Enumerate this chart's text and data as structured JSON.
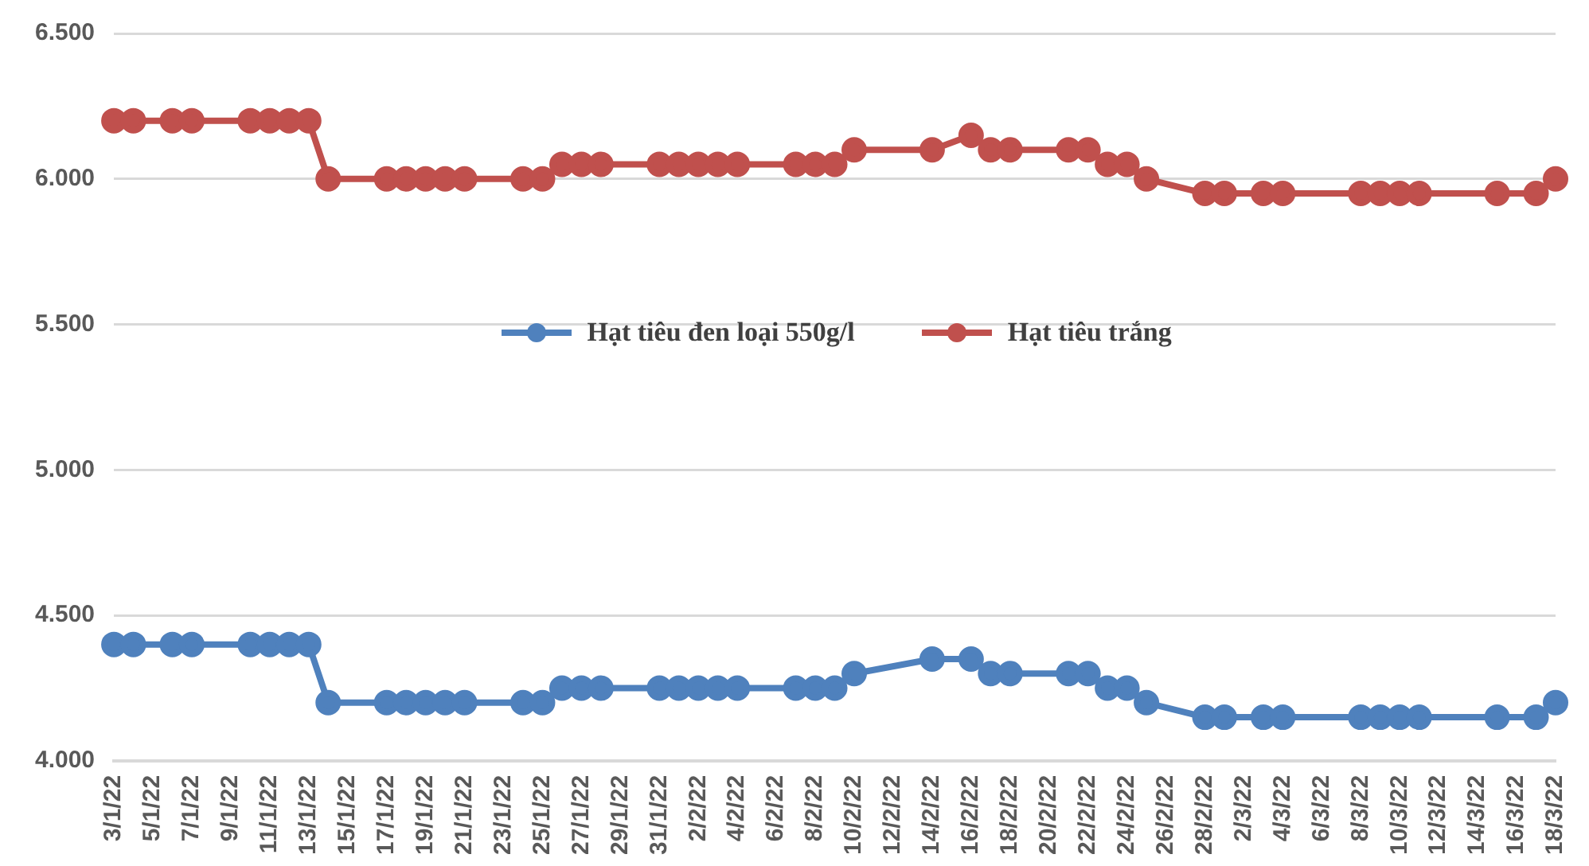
{
  "chart_data": {
    "type": "line",
    "x": [
      "--01-03",
      "--01-04",
      "--01-06",
      "--01-07",
      "--01-10",
      "--01-11",
      "--01-12",
      "--01-13",
      "--01-14",
      "--01-17",
      "--01-18",
      "--01-19",
      "--01-20",
      "--01-21",
      "--01-24",
      "--01-25",
      "--01-26",
      "--01-27",
      "--01-28",
      "--01-31",
      "--02-01",
      "--02-02",
      "--02-03",
      "--02-04",
      "--02-07",
      "--02-08",
      "--02-09",
      "--02-10",
      "--02-14",
      "--02-16",
      "--02-17",
      "--02-18",
      "--02-21",
      "--02-22",
      "--02-23",
      "--02-24",
      "--02-25",
      "--02-28",
      "--03-01",
      "--03-03",
      "--03-04",
      "--03-08",
      "--03-09",
      "--03-10",
      "--03-11",
      "--03-15",
      "--03-17",
      "--03-18"
    ],
    "series": [
      {
        "name": "Hạt tiêu đen loại 550g/l",
        "color": "#4f81bd",
        "values": [
          4400,
          4400,
          4400,
          4400,
          4400,
          4400,
          4400,
          4400,
          4200,
          4200,
          4200,
          4200,
          4200,
          4200,
          4200,
          4200,
          4250,
          4250,
          4250,
          4250,
          4250,
          4250,
          4250,
          4250,
          4250,
          4250,
          4250,
          4300,
          4350,
          4350,
          4300,
          4300,
          4300,
          4300,
          4250,
          4250,
          4200,
          4150,
          4150,
          4150,
          4150,
          4150,
          4150,
          4150,
          4150,
          4150,
          4150,
          4200
        ]
      },
      {
        "name": "Hạt tiêu trắng",
        "color": "#c0504d",
        "values": [
          6200,
          6200,
          6200,
          6200,
          6200,
          6200,
          6200,
          6200,
          6000,
          6000,
          6000,
          6000,
          6000,
          6000,
          6000,
          6000,
          6050,
          6050,
          6050,
          6050,
          6050,
          6050,
          6050,
          6050,
          6050,
          6050,
          6050,
          6100,
          6100,
          6150,
          6100,
          6100,
          6100,
          6100,
          6050,
          6050,
          6000,
          5950,
          5950,
          5950,
          5950,
          5950,
          5950,
          5950,
          5950,
          5950,
          5950,
          6000
        ]
      }
    ],
    "xlim": [
      "--01-03",
      "--03-18"
    ],
    "xticks": [
      {
        "value": "--01-03",
        "label": "3/1/22"
      },
      {
        "value": "--01-05",
        "label": "5/1/22"
      },
      {
        "value": "--01-07",
        "label": "7/1/22"
      },
      {
        "value": "--01-09",
        "label": "9/1/22"
      },
      {
        "value": "--01-11",
        "label": "11/1/22"
      },
      {
        "value": "--01-13",
        "label": "13/1/22"
      },
      {
        "value": "--01-15",
        "label": "15/1/22"
      },
      {
        "value": "--01-17",
        "label": "17/1/22"
      },
      {
        "value": "--01-19",
        "label": "19/1/22"
      },
      {
        "value": "--01-21",
        "label": "21/1/22"
      },
      {
        "value": "--01-23",
        "label": "23/1/22"
      },
      {
        "value": "--01-25",
        "label": "25/1/22"
      },
      {
        "value": "--01-27",
        "label": "27/1/22"
      },
      {
        "value": "--01-29",
        "label": "29/1/22"
      },
      {
        "value": "--01-31",
        "label": "31/1/22"
      },
      {
        "value": "--02-02",
        "label": "2/2/22"
      },
      {
        "value": "--02-04",
        "label": "4/2/22"
      },
      {
        "value": "--02-06",
        "label": "6/2/22"
      },
      {
        "value": "--02-08",
        "label": "8/2/22"
      },
      {
        "value": "--02-10",
        "label": "10/2/22"
      },
      {
        "value": "--02-12",
        "label": "12/2/22"
      },
      {
        "value": "--02-14",
        "label": "14/2/22"
      },
      {
        "value": "--02-16",
        "label": "16/2/22"
      },
      {
        "value": "--02-18",
        "label": "18/2/22"
      },
      {
        "value": "--02-20",
        "label": "20/2/22"
      },
      {
        "value": "--02-22",
        "label": "22/2/22"
      },
      {
        "value": "--02-24",
        "label": "24/2/22"
      },
      {
        "value": "--02-26",
        "label": "26/2/22"
      },
      {
        "value": "--02-28",
        "label": "28/2/22"
      },
      {
        "value": "--03-02",
        "label": "2/3/22"
      },
      {
        "value": "--03-04",
        "label": "4/3/22"
      },
      {
        "value": "--03-06",
        "label": "6/3/22"
      },
      {
        "value": "--03-08",
        "label": "8/3/22"
      },
      {
        "value": "--03-10",
        "label": "10/3/22"
      },
      {
        "value": "--03-12",
        "label": "12/3/22"
      },
      {
        "value": "--03-14",
        "label": "14/3/22"
      },
      {
        "value": "--03-16",
        "label": "16/3/22"
      },
      {
        "value": "--03-18",
        "label": "18/3/22"
      }
    ],
    "ylim": [
      4000,
      6500
    ],
    "yticks": [
      {
        "value": 4000,
        "label": "4.000"
      },
      {
        "value": 4500,
        "label": "4.500"
      },
      {
        "value": 5000,
        "label": "5.000"
      },
      {
        "value": 5500,
        "label": "5.500"
      },
      {
        "value": 6000,
        "label": "6.000"
      },
      {
        "value": 6500,
        "label": "6.500"
      }
    ],
    "grid": "y",
    "legend": "center",
    "marker": "circle",
    "line_style": "solid"
  }
}
